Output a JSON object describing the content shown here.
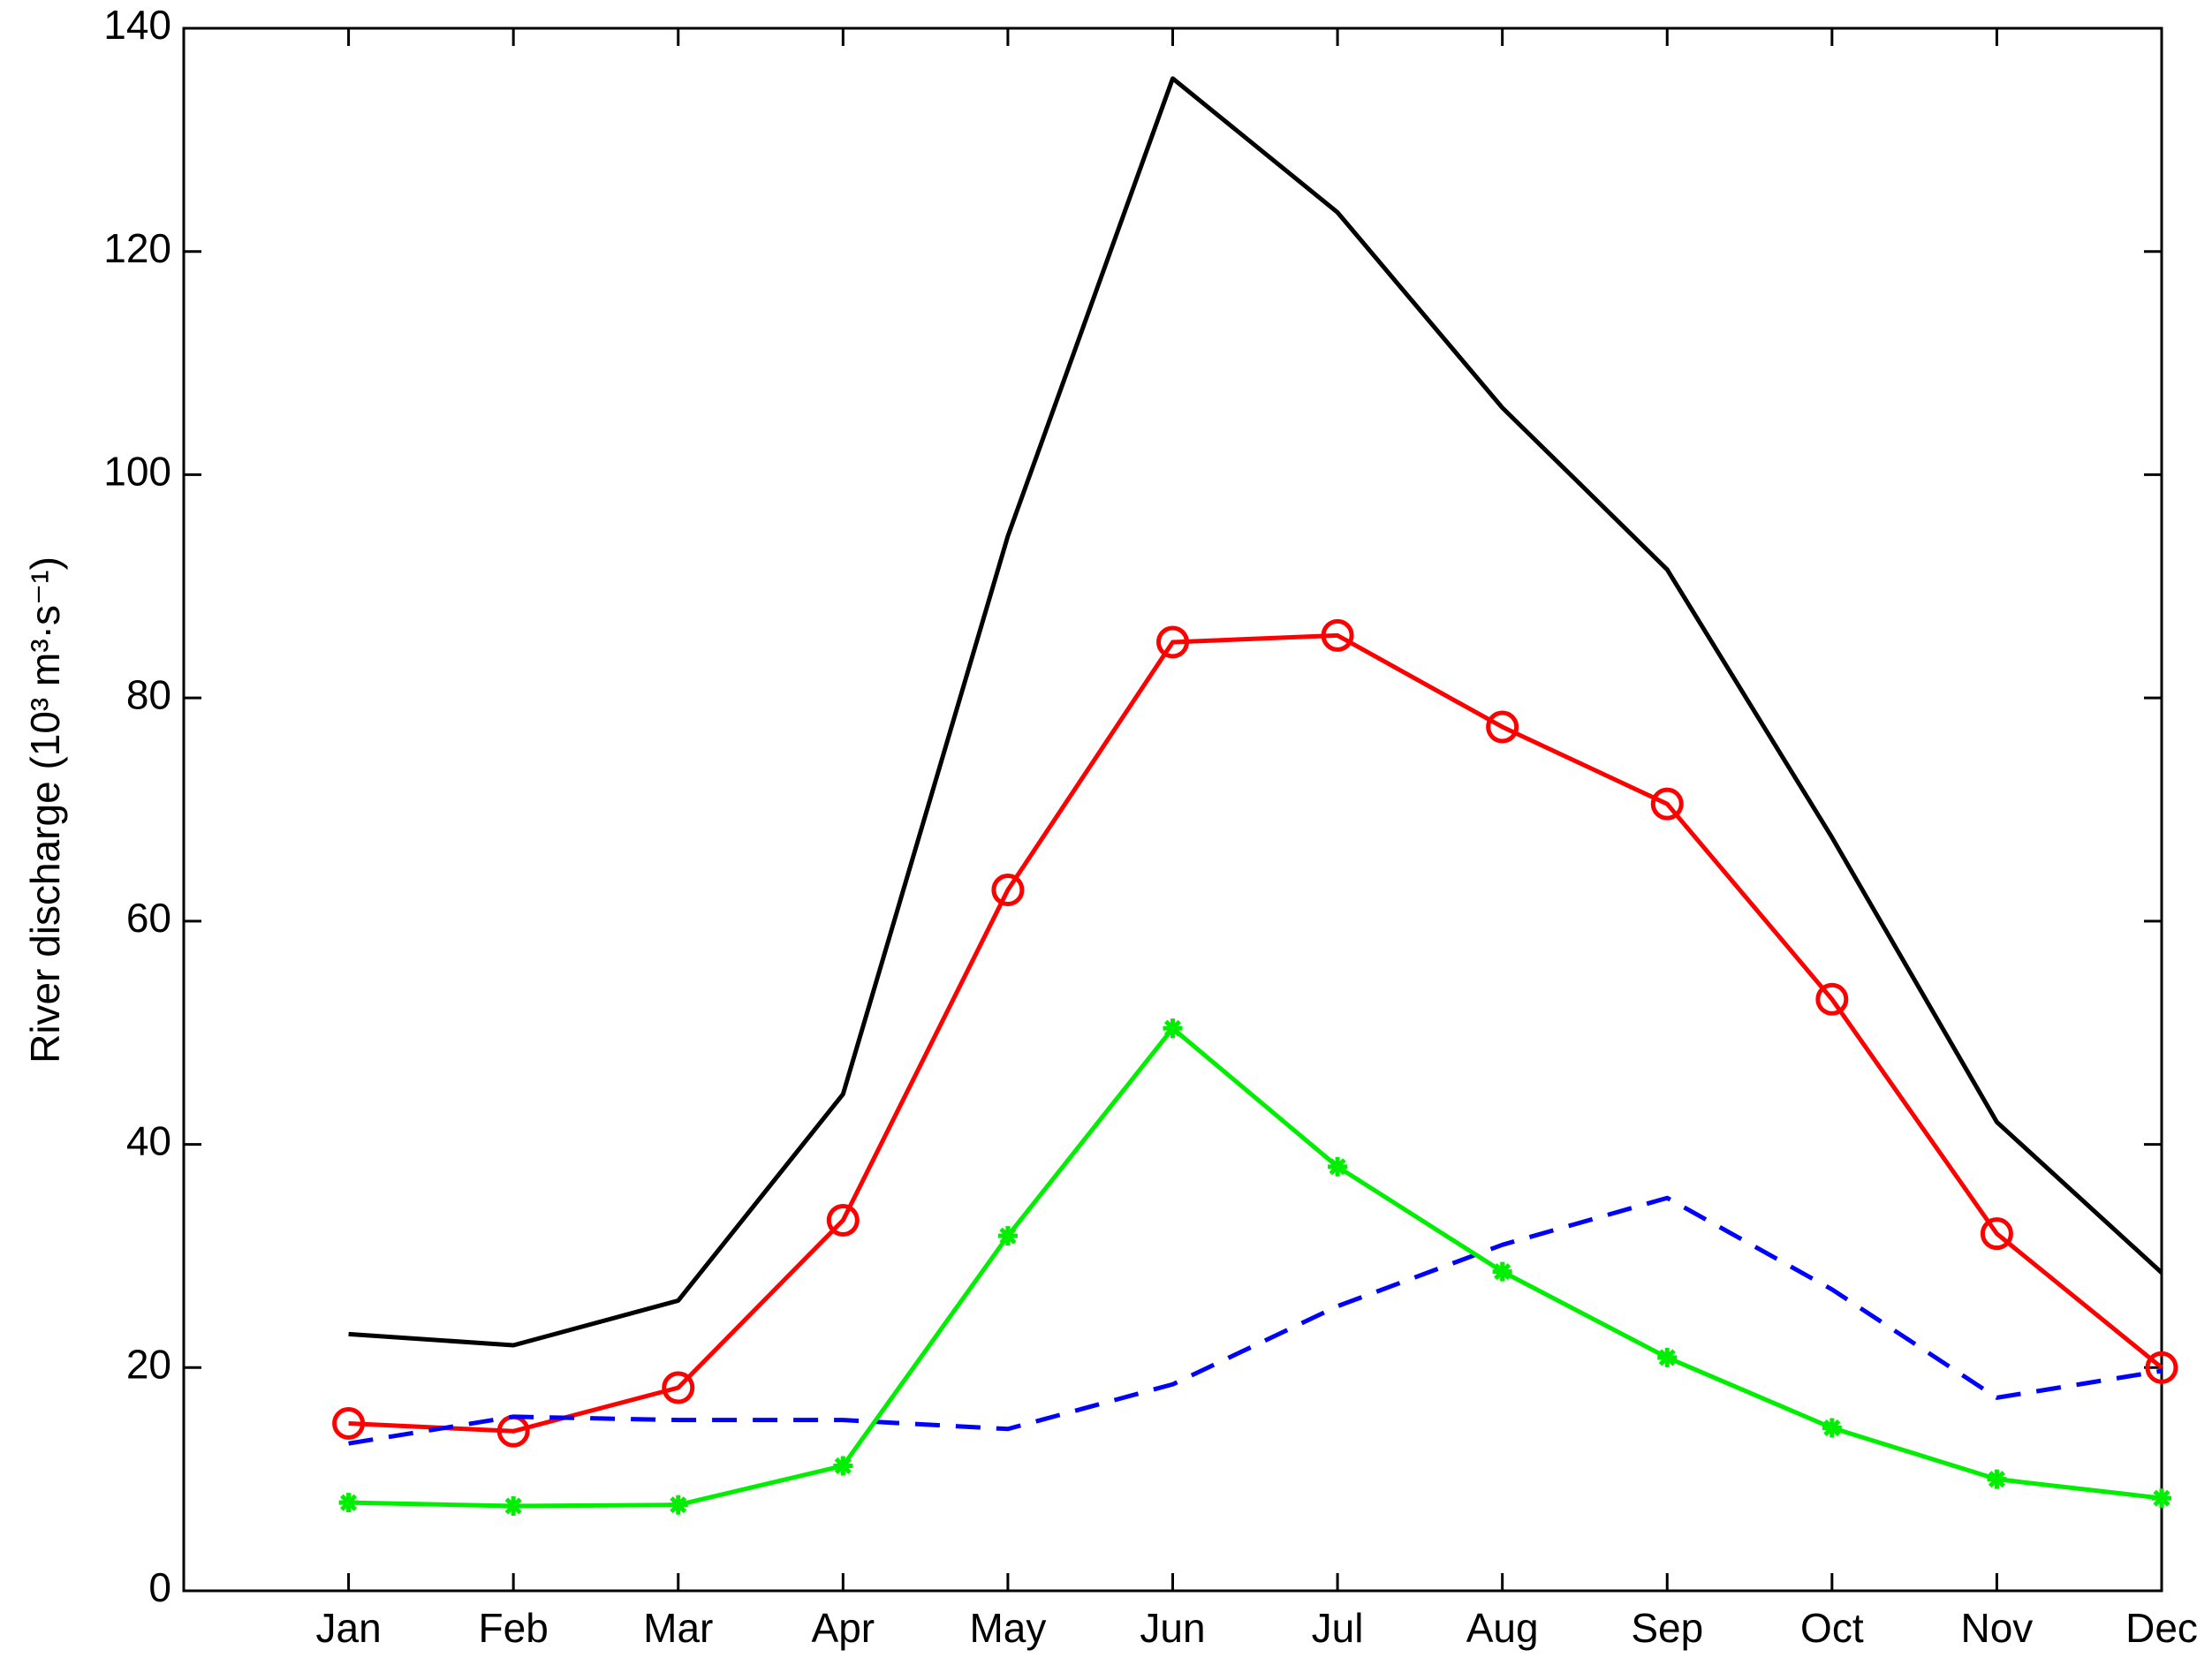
{
  "chart_data": {
    "type": "line",
    "ylabel": "River discharge (10³ m³·s⁻¹)",
    "categories": [
      "Jan",
      "Feb",
      "Mar",
      "Apr",
      "May",
      "Jun",
      "Jul",
      "Aug",
      "Sep",
      "Oct",
      "Nov",
      "Dec"
    ],
    "series": [
      {
        "color": "#000000",
        "dash": false,
        "marker": "none",
        "values": [
          23,
          22,
          26,
          44.5,
          94.5,
          135.5,
          123.5,
          106,
          91.5,
          67.5,
          42,
          28.5
        ]
      },
      {
        "color": "#ff0000",
        "dash": false,
        "marker": "circle",
        "values": [
          15,
          14.3,
          18.2,
          33.2,
          62.8,
          85,
          85.6,
          77.4,
          70.5,
          53,
          32,
          20
        ]
      },
      {
        "color": "#0000ff",
        "dash": true,
        "marker": "none",
        "values": [
          13.2,
          15.6,
          15.3,
          15.3,
          14.5,
          18.5,
          25.5,
          31,
          35.2,
          27,
          17.3,
          19.7
        ]
      },
      {
        "color": "#00ee00",
        "dash": false,
        "marker": "star",
        "values": [
          7.9,
          7.6,
          7.7,
          11.2,
          31.8,
          50.4,
          38,
          28.6,
          20.9,
          14.6,
          10,
          8.3
        ]
      }
    ],
    "ylim": [
      0,
      140
    ],
    "yticks": [
      0,
      20,
      40,
      60,
      80,
      100,
      120,
      140
    ],
    "grid": false
  }
}
